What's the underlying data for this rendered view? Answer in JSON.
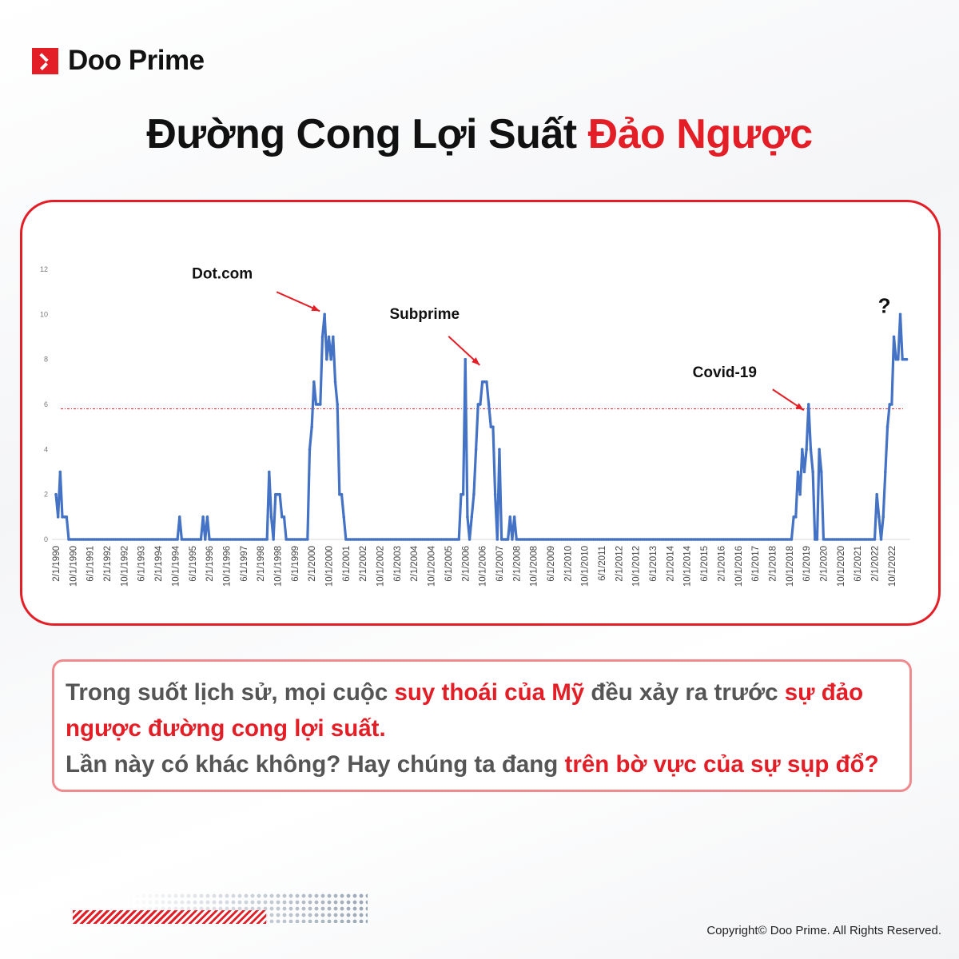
{
  "brand": {
    "name": "Doo Prime",
    "color": "#e41e26"
  },
  "title": {
    "part1": "Đường Cong Lợi Suất ",
    "part2": "Đảo Ngược"
  },
  "chart_data": {
    "type": "line",
    "title": "",
    "xlabel": "",
    "ylabel": "",
    "ylim": [
      0,
      12
    ],
    "yticks": [
      0,
      2,
      4,
      6,
      8,
      10,
      12
    ],
    "grid": false,
    "series_color": "#4472c4",
    "threshold_line": {
      "value": 5.8,
      "style": "dashed",
      "color": "#e41e26"
    },
    "x_tick_labels": [
      "2/1/1990",
      "10/1/1990",
      "6/1/1991",
      "2/1/1992",
      "10/1/1992",
      "6/1/1993",
      "2/1/1994",
      "10/1/1994",
      "6/1/1995",
      "2/1/1996",
      "10/1/1996",
      "6/1/1997",
      "2/1/1998",
      "10/1/1998",
      "6/1/1999",
      "2/1/2000",
      "10/1/2000",
      "6/1/2001",
      "2/1/2002",
      "10/1/2002",
      "6/1/2003",
      "2/1/2004",
      "10/1/2004",
      "6/1/2005",
      "2/1/2006",
      "10/1/2006",
      "6/1/2007",
      "2/1/2008",
      "10/1/2008",
      "6/1/2009",
      "2/1/2010",
      "10/1/2010",
      "6/1/2011",
      "2/1/2012",
      "10/1/2012",
      "6/1/2013",
      "2/1/2014",
      "10/1/2014",
      "6/1/2015",
      "2/1/2016",
      "10/1/2016",
      "6/1/2017",
      "2/1/2018",
      "10/1/2018",
      "6/1/2019",
      "2/1/2020",
      "10/1/2020",
      "6/1/2021",
      "2/1/2022",
      "10/1/2022"
    ],
    "x_range": [
      "1990-02",
      "2023-05"
    ],
    "default_value": 0,
    "points": [
      [
        "1990-02",
        2
      ],
      [
        "1990-03",
        1
      ],
      [
        "1990-04",
        3
      ],
      [
        "1990-05",
        1
      ],
      [
        "1990-06",
        1
      ],
      [
        "1990-07",
        1
      ],
      [
        "1994-12",
        1
      ],
      [
        "1995-11",
        1
      ],
      [
        "1996-01",
        1
      ],
      [
        "1998-06",
        3
      ],
      [
        "1998-07",
        1
      ],
      [
        "1998-09",
        2
      ],
      [
        "1998-10",
        2
      ],
      [
        "1998-11",
        2
      ],
      [
        "1998-12",
        1
      ],
      [
        "1999-01",
        1
      ],
      [
        "2000-01",
        4
      ],
      [
        "2000-02",
        5
      ],
      [
        "2000-03",
        7
      ],
      [
        "2000-04",
        6
      ],
      [
        "2000-05",
        6
      ],
      [
        "2000-06",
        6
      ],
      [
        "2000-07",
        9
      ],
      [
        "2000-08",
        10
      ],
      [
        "2000-09",
        8
      ],
      [
        "2000-10",
        9
      ],
      [
        "2000-11",
        8
      ],
      [
        "2000-12",
        9
      ],
      [
        "2001-01",
        7
      ],
      [
        "2001-02",
        6
      ],
      [
        "2001-03",
        2
      ],
      [
        "2001-04",
        2
      ],
      [
        "2001-05",
        1
      ],
      [
        "2005-12",
        2
      ],
      [
        "2006-01",
        2
      ],
      [
        "2006-02",
        8
      ],
      [
        "2006-03",
        1
      ],
      [
        "2006-05",
        1
      ],
      [
        "2006-06",
        2
      ],
      [
        "2006-07",
        4
      ],
      [
        "2006-08",
        6
      ],
      [
        "2006-09",
        6
      ],
      [
        "2006-10",
        7
      ],
      [
        "2006-11",
        7
      ],
      [
        "2006-12",
        7
      ],
      [
        "2007-01",
        6
      ],
      [
        "2007-02",
        5
      ],
      [
        "2007-03",
        5
      ],
      [
        "2007-04",
        2
      ],
      [
        "2007-06",
        4
      ],
      [
        "2007-11",
        1
      ],
      [
        "2008-01",
        1
      ],
      [
        "2018-12",
        1
      ],
      [
        "2019-01",
        1
      ],
      [
        "2019-02",
        3
      ],
      [
        "2019-03",
        2
      ],
      [
        "2019-04",
        4
      ],
      [
        "2019-05",
        3
      ],
      [
        "2019-06",
        4
      ],
      [
        "2019-07",
        6
      ],
      [
        "2019-08",
        4
      ],
      [
        "2019-09",
        3
      ],
      [
        "2019-12",
        4
      ],
      [
        "2020-01",
        3
      ],
      [
        "2022-03",
        2
      ],
      [
        "2022-04",
        1
      ],
      [
        "2022-06",
        1
      ],
      [
        "2022-07",
        3
      ],
      [
        "2022-08",
        5
      ],
      [
        "2022-09",
        6
      ],
      [
        "2022-10",
        6
      ],
      [
        "2022-11",
        9
      ],
      [
        "2022-12",
        8
      ],
      [
        "2023-01",
        8
      ],
      [
        "2023-02",
        10
      ],
      [
        "2023-03",
        8
      ],
      [
        "2023-04",
        8
      ],
      [
        "2023-05",
        8
      ]
    ],
    "annotations": [
      {
        "text": "Dot.com",
        "date": "2000-08",
        "value": 10
      },
      {
        "text": "Subprime",
        "date": "2006-11",
        "value": 7.6
      },
      {
        "text": "Covid-19",
        "date": "2019-07",
        "value": 5.6
      },
      {
        "text": "?",
        "date": "2023-02",
        "value": 10
      }
    ]
  },
  "message": {
    "line1_a": "Trong suốt lịch sử, mọi cuộc ",
    "line1_b": "suy thoái của Mỹ",
    "line1_c": " đều xảy ra trước ",
    "line1_d": "sự đảo ngược đường cong lợi suất.",
    "line2_a": "Lần này có khác không? Hay chúng ta đang ",
    "line2_b": "trên bờ vực của sự sụp đổ?"
  },
  "footer": {
    "copyright": "Copyright© Doo Prime. All Rights Reserved."
  }
}
